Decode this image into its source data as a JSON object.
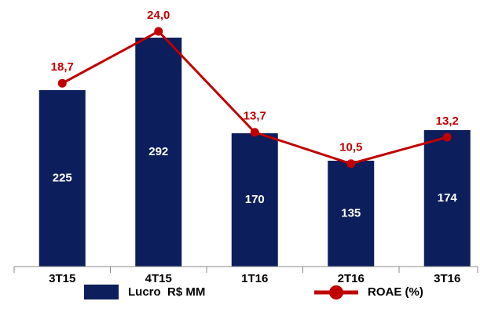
{
  "chart_data": {
    "type": "bar",
    "categories": [
      "3T15",
      "4T15",
      "1T16",
      "2T16",
      "3T16"
    ],
    "series": [
      {
        "name": "Lucro  R$ MM",
        "type": "bar",
        "color": "#0c1e5b",
        "values": [
          225,
          292,
          170,
          135,
          174
        ]
      },
      {
        "name": "ROAE (%)",
        "type": "line",
        "axis": "y2",
        "color": "#c00000",
        "values": [
          18.7,
          24.0,
          13.7,
          10.5,
          13.2
        ],
        "value_labels": [
          "18,7",
          "24,0",
          "13,7",
          "10,5",
          "13,2"
        ]
      }
    ],
    "ylim": [
      0,
      300
    ],
    "y2lim": [
      0,
      24
    ]
  }
}
